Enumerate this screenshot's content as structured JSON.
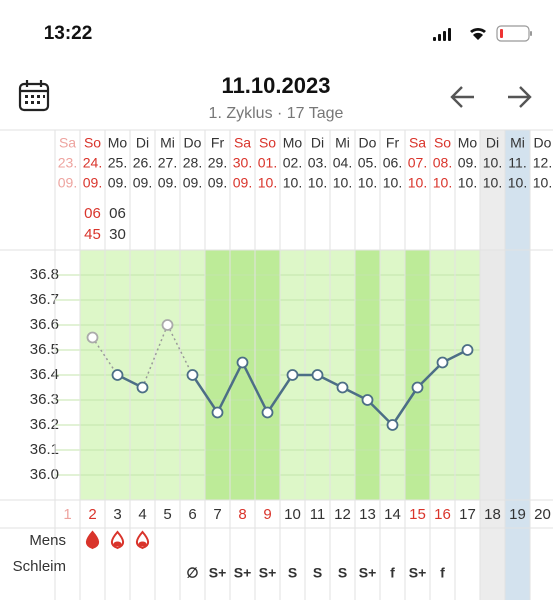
{
  "status_bar": {
    "time": "13:22"
  },
  "header": {
    "title": "11.10.2023",
    "subtitle": "1. Zyklus · 17 Tage"
  },
  "rows": {
    "mens": "Mens",
    "mucus": "Schleim"
  },
  "chart": {
    "ylim": [
      35.9,
      36.9
    ],
    "yticks": [
      36.8,
      36.7,
      36.6,
      36.5,
      36.4,
      36.3,
      36.2,
      36.1,
      {
        "value": 36,
        "label": "36.0"
      }
    ]
  },
  "days": [
    {
      "weekday": "Sa",
      "date": "23.",
      "month": "09.",
      "number": 1,
      "weekend": true,
      "faded": true
    },
    {
      "weekday": "So",
      "date": "24.",
      "month": "09.",
      "number": 2,
      "weekend": true,
      "time": [
        "06",
        "45"
      ],
      "temp": 36.55,
      "excluded": true,
      "mens": "filled",
      "shade": "range"
    },
    {
      "weekday": "Mo",
      "date": "25.",
      "month": "09.",
      "number": 3,
      "time": [
        "06",
        "30"
      ],
      "temp": 36.4,
      "mens": "outline",
      "shade": "range"
    },
    {
      "weekday": "Di",
      "date": "26.",
      "month": "09.",
      "number": 4,
      "temp": 36.35,
      "mens": "outline",
      "shade": "range"
    },
    {
      "weekday": "Mi",
      "date": "27.",
      "month": "09.",
      "number": 5,
      "temp": 36.6,
      "excluded": true,
      "shade": "range"
    },
    {
      "weekday": "Do",
      "date": "28.",
      "month": "09.",
      "number": 6,
      "temp": 36.4,
      "mucus": "∅",
      "shade": "range"
    },
    {
      "weekday": "Fr",
      "date": "29.",
      "month": "09.",
      "number": 7,
      "temp": 36.25,
      "mucus": "S+",
      "shade": "fertile"
    },
    {
      "weekday": "Sa",
      "date": "30.",
      "month": "09.",
      "number": 8,
      "weekend": true,
      "temp": 36.45,
      "mucus": "S+",
      "shade": "fertile"
    },
    {
      "weekday": "So",
      "date": "01.",
      "month": "10.",
      "number": 9,
      "weekend": true,
      "temp": 36.25,
      "mucus": "S+",
      "shade": "fertile"
    },
    {
      "weekday": "Mo",
      "date": "02.",
      "month": "10.",
      "number": 10,
      "temp": 36.4,
      "mucus": "S",
      "shade": "range"
    },
    {
      "weekday": "Di",
      "date": "03.",
      "month": "10.",
      "number": 11,
      "temp": 36.4,
      "mucus": "S",
      "shade": "range"
    },
    {
      "weekday": "Mi",
      "date": "04.",
      "month": "10.",
      "number": 12,
      "temp": 36.35,
      "mucus": "S",
      "shade": "range"
    },
    {
      "weekday": "Do",
      "date": "05.",
      "month": "10.",
      "number": 13,
      "temp": 36.3,
      "mucus": "S+",
      "shade": "fertile"
    },
    {
      "weekday": "Fr",
      "date": "06.",
      "month": "10.",
      "number": 14,
      "temp": 36.2,
      "mucus": "f",
      "shade": "range"
    },
    {
      "weekday": "Sa",
      "date": "07.",
      "month": "10.",
      "number": 15,
      "weekend": true,
      "temp": 36.35,
      "mucus": "S+",
      "shade": "fertile"
    },
    {
      "weekday": "So",
      "date": "08.",
      "month": "10.",
      "number": 16,
      "weekend": true,
      "temp": 36.45,
      "mucus": "f",
      "shade": "range"
    },
    {
      "weekday": "Mo",
      "date": "09.",
      "month": "10.",
      "number": 17,
      "temp": 36.5,
      "shade": "range"
    },
    {
      "weekday": "Di",
      "date": "10.",
      "month": "10.",
      "number": 18,
      "shade": "future"
    },
    {
      "weekday": "Mi",
      "date": "11.",
      "month": "10.",
      "number": 19,
      "shade": "today"
    },
    {
      "weekday": "Do",
      "date": "12.",
      "month": "10.",
      "number": 20
    }
  ]
}
